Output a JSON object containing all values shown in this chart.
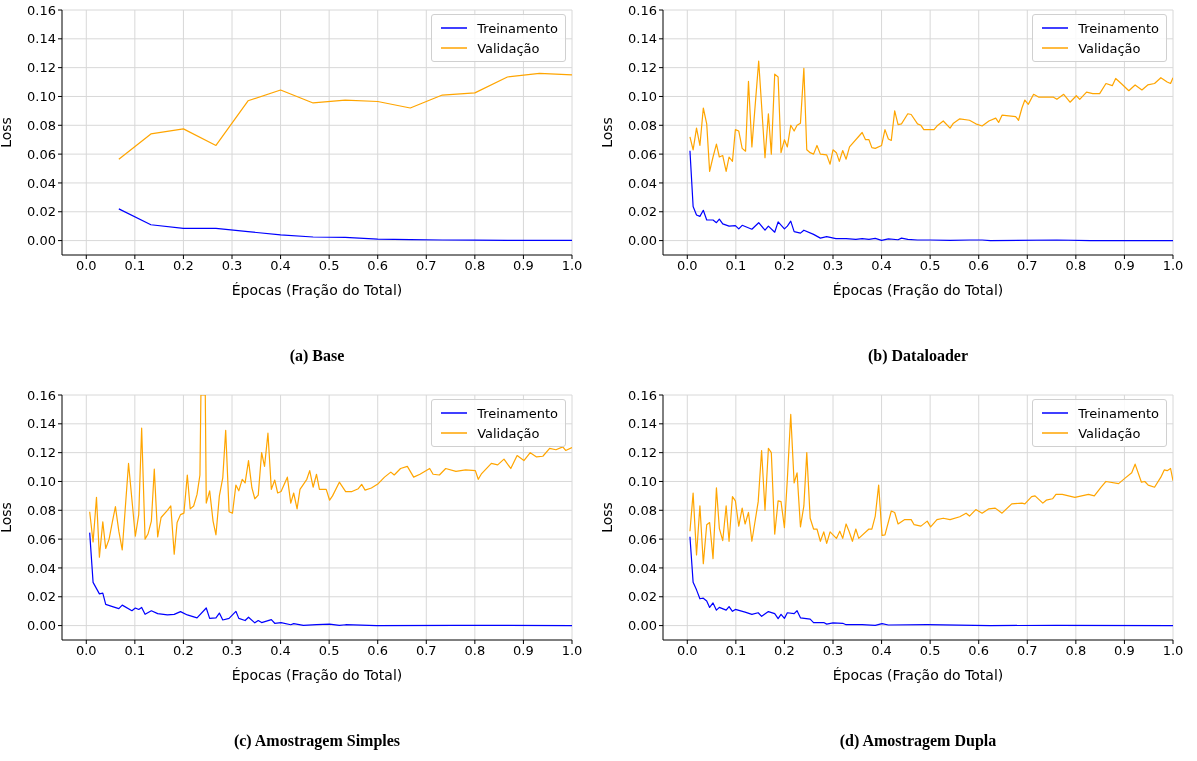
{
  "chart_data": [
    {
      "type": "line",
      "title": "(a) Base",
      "xlabel": "Épocas (Fração do Total)",
      "ylabel": "Loss",
      "xlim": [
        -0.05,
        1.0
      ],
      "xticks": [
        {
          "value": 0,
          "label": "0.0"
        },
        {
          "value": 0.1,
          "label": "0.1"
        },
        {
          "value": 0.2,
          "label": "0.2"
        },
        {
          "value": 0.3,
          "label": "0.3"
        },
        {
          "value": 0.4,
          "label": "0.4"
        },
        {
          "value": 0.5,
          "label": "0.5"
        },
        {
          "value": 0.6,
          "label": "0.6"
        },
        {
          "value": 0.7,
          "label": "0.7"
        },
        {
          "value": 0.8,
          "label": "0.8"
        },
        {
          "value": 0.9,
          "label": "0.9"
        },
        {
          "value": 1,
          "label": "1.0"
        }
      ],
      "ylim": [
        -0.01,
        0.16
      ],
      "yticks": [
        {
          "value": 0,
          "label": "0.00"
        },
        {
          "value": 0.02,
          "label": "0.02"
        },
        {
          "value": 0.04,
          "label": "0.04"
        },
        {
          "value": 0.06,
          "label": "0.06"
        },
        {
          "value": 0.08,
          "label": "0.08"
        },
        {
          "value": 0.1,
          "label": "0.10"
        },
        {
          "value": 0.12,
          "label": "0.12"
        },
        {
          "value": 0.14,
          "label": "0.14"
        },
        {
          "value": 0.16,
          "label": "0.16"
        }
      ],
      "grid": true,
      "legend": "top right",
      "x": [
        0.067,
        0.133,
        0.2,
        0.267,
        0.333,
        0.4,
        0.467,
        0.533,
        0.6,
        0.667,
        0.733,
        0.8,
        0.867,
        0.933,
        1.0
      ],
      "series": [
        {
          "name": "Treinamento",
          "color": "#0000ff",
          "values": [
            0.022,
            0.011,
            0.0085,
            0.0085,
            0.0062,
            0.004,
            0.0025,
            0.0022,
            0.001,
            0.0007,
            0.0004,
            0.0003,
            0.0002,
            0.0002,
            0.0002
          ]
        },
        {
          "name": "Validação",
          "color": "#ffa500",
          "values": [
            0.0565,
            0.074,
            0.0775,
            0.066,
            0.097,
            0.1045,
            0.0955,
            0.0975,
            0.0965,
            0.092,
            0.101,
            0.1025,
            0.1135,
            0.116,
            0.115
          ]
        }
      ]
    },
    {
      "type": "line",
      "title": "(b) Dataloader",
      "xlabel": "Épocas (Fração do Total)",
      "ylabel": "Loss",
      "xlim": [
        -0.05,
        1.0
      ],
      "xticks": [
        {
          "value": 0,
          "label": "0.0"
        },
        {
          "value": 0.1,
          "label": "0.1"
        },
        {
          "value": 0.2,
          "label": "0.2"
        },
        {
          "value": 0.3,
          "label": "0.3"
        },
        {
          "value": 0.4,
          "label": "0.4"
        },
        {
          "value": 0.5,
          "label": "0.5"
        },
        {
          "value": 0.6,
          "label": "0.6"
        },
        {
          "value": 0.7,
          "label": "0.7"
        },
        {
          "value": 0.8,
          "label": "0.8"
        },
        {
          "value": 0.9,
          "label": "0.9"
        },
        {
          "value": 1,
          "label": "1.0"
        }
      ],
      "ylim": [
        -0.01,
        0.16
      ],
      "yticks": [
        {
          "value": 0,
          "label": "0.00"
        },
        {
          "value": 0.02,
          "label": "0.02"
        },
        {
          "value": 0.04,
          "label": "0.04"
        },
        {
          "value": 0.06,
          "label": "0.06"
        },
        {
          "value": 0.08,
          "label": "0.08"
        },
        {
          "value": 0.1,
          "label": "0.10"
        },
        {
          "value": 0.12,
          "label": "0.12"
        },
        {
          "value": 0.14,
          "label": "0.14"
        },
        {
          "value": 0.16,
          "label": "0.16"
        }
      ],
      "grid": true,
      "legend": "top right",
      "series": [
        {
          "name": "Treinamento",
          "color": "#0000ff",
          "x": [
            0.0055,
            0.012,
            0.019,
            0.026,
            0.033,
            0.04,
            0.053,
            0.06,
            0.066,
            0.073,
            0.086,
            0.099,
            0.106,
            0.113,
            0.133,
            0.147,
            0.16,
            0.167,
            0.18,
            0.187,
            0.2,
            0.206,
            0.213,
            0.22,
            0.233,
            0.24,
            0.26,
            0.274,
            0.287,
            0.306,
            0.327,
            0.347,
            0.36,
            0.374,
            0.387,
            0.4,
            0.414,
            0.434,
            0.441,
            0.454,
            0.474,
            0.501,
            0.541,
            0.581,
            0.607,
            0.624,
            0.761,
            0.83,
            1.0
          ],
          "values": [
            0.0623,
            0.0236,
            0.0178,
            0.0168,
            0.021,
            0.0143,
            0.0143,
            0.0124,
            0.0149,
            0.0116,
            0.01,
            0.0104,
            0.0081,
            0.0106,
            0.0079,
            0.0124,
            0.0072,
            0.01,
            0.0058,
            0.013,
            0.0081,
            0.01,
            0.0135,
            0.0062,
            0.0052,
            0.0072,
            0.0043,
            0.0017,
            0.0027,
            0.0014,
            0.0014,
            0.0008,
            0.0014,
            0.0008,
            0.0015,
            0.0002,
            0.0012,
            0.0006,
            0.0017,
            0.0008,
            0.0004,
            0.0004,
            0.0002,
            0.0004,
            0.0004,
            0,
            0.0004,
            0,
            0
          ]
        },
        {
          "name": "Validação",
          "color": "#ffa500",
          "x": [
            0.0055,
            0.012,
            0.019,
            0.026,
            0.033,
            0.04,
            0.046,
            0.053,
            0.06,
            0.066,
            0.073,
            0.08,
            0.086,
            0.093,
            0.099,
            0.106,
            0.113,
            0.12,
            0.126,
            0.133,
            0.147,
            0.16,
            0.167,
            0.173,
            0.18,
            0.187,
            0.193,
            0.2,
            0.206,
            0.213,
            0.22,
            0.226,
            0.233,
            0.24,
            0.246,
            0.253,
            0.26,
            0.267,
            0.274,
            0.287,
            0.294,
            0.3,
            0.307,
            0.313,
            0.32,
            0.327,
            0.334,
            0.36,
            0.367,
            0.374,
            0.38,
            0.387,
            0.4,
            0.407,
            0.414,
            0.42,
            0.427,
            0.434,
            0.441,
            0.454,
            0.461,
            0.474,
            0.481,
            0.487,
            0.508,
            0.514,
            0.527,
            0.541,
            0.548,
            0.561,
            0.581,
            0.594,
            0.607,
            0.621,
            0.635,
            0.641,
            0.648,
            0.662,
            0.676,
            0.682,
            0.689,
            0.695,
            0.702,
            0.713,
            0.724,
            0.754,
            0.761,
            0.775,
            0.788,
            0.801,
            0.808,
            0.822,
            0.835,
            0.849,
            0.862,
            0.875,
            0.882,
            0.895,
            0.909,
            0.922,
            0.936,
            0.948,
            0.962,
            0.975,
            0.988,
            0.995,
            1.0
          ],
          "values": [
            0.072,
            0.063,
            0.078,
            0.066,
            0.092,
            0.081,
            0.048,
            0.058,
            0.067,
            0.058,
            0.059,
            0.048,
            0.058,
            0.055,
            0.077,
            0.076,
            0.064,
            0.062,
            0.1105,
            0.065,
            0.1245,
            0.0575,
            0.088,
            0.06,
            0.1155,
            0.1135,
            0.061,
            0.07,
            0.065,
            0.08,
            0.076,
            0.08,
            0.0815,
            0.1195,
            0.063,
            0.061,
            0.06,
            0.066,
            0.06,
            0.0595,
            0.053,
            0.063,
            0.061,
            0.055,
            0.0625,
            0.0565,
            0.065,
            0.075,
            0.07,
            0.07,
            0.0645,
            0.064,
            0.066,
            0.077,
            0.0705,
            0.0695,
            0.09,
            0.0805,
            0.081,
            0.088,
            0.0875,
            0.081,
            0.08,
            0.077,
            0.077,
            0.0795,
            0.083,
            0.078,
            0.0815,
            0.0845,
            0.0835,
            0.081,
            0.0795,
            0.083,
            0.085,
            0.082,
            0.087,
            0.0865,
            0.086,
            0.0835,
            0.092,
            0.0975,
            0.0945,
            0.1015,
            0.0995,
            0.0995,
            0.098,
            0.1015,
            0.096,
            0.1005,
            0.098,
            0.103,
            0.102,
            0.102,
            0.109,
            0.1075,
            0.1125,
            0.1085,
            0.104,
            0.108,
            0.1045,
            0.108,
            0.109,
            0.113,
            0.11,
            0.109,
            0.113
          ]
        }
      ]
    },
    {
      "type": "line",
      "title": "(c) Amostragem Simples",
      "xlabel": "Épocas (Fração do Total)",
      "ylabel": "Loss",
      "xlim": [
        -0.05,
        1.0
      ],
      "xticks": [
        {
          "value": 0,
          "label": "0.0"
        },
        {
          "value": 0.1,
          "label": "0.1"
        },
        {
          "value": 0.2,
          "label": "0.2"
        },
        {
          "value": 0.3,
          "label": "0.3"
        },
        {
          "value": 0.4,
          "label": "0.4"
        },
        {
          "value": 0.5,
          "label": "0.5"
        },
        {
          "value": 0.6,
          "label": "0.6"
        },
        {
          "value": 0.7,
          "label": "0.7"
        },
        {
          "value": 0.8,
          "label": "0.8"
        },
        {
          "value": 0.9,
          "label": "0.9"
        },
        {
          "value": 1,
          "label": "1.0"
        }
      ],
      "ylim": [
        -0.01,
        0.16
      ],
      "yticks": [
        {
          "value": 0,
          "label": "0.00"
        },
        {
          "value": 0.02,
          "label": "0.02"
        },
        {
          "value": 0.04,
          "label": "0.04"
        },
        {
          "value": 0.06,
          "label": "0.06"
        },
        {
          "value": 0.08,
          "label": "0.08"
        },
        {
          "value": 0.1,
          "label": "0.10"
        },
        {
          "value": 0.12,
          "label": "0.12"
        },
        {
          "value": 0.14,
          "label": "0.14"
        },
        {
          "value": 0.16,
          "label": "0.16"
        }
      ],
      "grid": true,
      "legend": "top right",
      "series": [
        {
          "name": "Treinamento",
          "color": "#0000ff",
          "x": [
            0.007,
            0.014,
            0.027,
            0.034,
            0.04,
            0.054,
            0.067,
            0.074,
            0.094,
            0.101,
            0.108,
            0.114,
            0.121,
            0.134,
            0.147,
            0.167,
            0.181,
            0.194,
            0.208,
            0.228,
            0.247,
            0.254,
            0.267,
            0.274,
            0.281,
            0.294,
            0.308,
            0.314,
            0.327,
            0.334,
            0.347,
            0.354,
            0.361,
            0.381,
            0.388,
            0.401,
            0.421,
            0.427,
            0.447,
            0.474,
            0.501,
            0.521,
            0.534,
            0.598,
            0.761,
            1.0
          ],
          "values": [
            0.0645,
            0.03,
            0.022,
            0.0225,
            0.0147,
            0.0132,
            0.0118,
            0.0142,
            0.0103,
            0.0122,
            0.0112,
            0.0126,
            0.0078,
            0.0103,
            0.0083,
            0.0074,
            0.0078,
            0.0097,
            0.0074,
            0.0054,
            0.0122,
            0.005,
            0.0054,
            0.0087,
            0.0039,
            0.005,
            0.0099,
            0.005,
            0.0035,
            0.0058,
            0.0019,
            0.0035,
            0.0021,
            0.0041,
            0.0016,
            0.0021,
            0.0006,
            0.0014,
            0.0002,
            0.0006,
            0.001,
            0.0002,
            0.0006,
            0,
            0.0002,
            0
          ]
        },
        {
          "name": "Validação",
          "color": "#ffa500",
          "x": [
            0.007,
            0.014,
            0.021,
            0.027,
            0.034,
            0.04,
            0.047,
            0.054,
            0.06,
            0.067,
            0.074,
            0.087,
            0.101,
            0.108,
            0.114,
            0.121,
            0.127,
            0.134,
            0.14,
            0.147,
            0.154,
            0.167,
            0.174,
            0.181,
            0.187,
            0.194,
            0.201,
            0.208,
            0.214,
            0.221,
            0.228,
            0.234,
            0.236,
            0.245,
            0.247,
            0.254,
            0.261,
            0.267,
            0.274,
            0.281,
            0.287,
            0.294,
            0.301,
            0.308,
            0.314,
            0.321,
            0.327,
            0.334,
            0.341,
            0.347,
            0.354,
            0.361,
            0.367,
            0.374,
            0.381,
            0.388,
            0.394,
            0.401,
            0.414,
            0.421,
            0.427,
            0.434,
            0.44,
            0.454,
            0.46,
            0.467,
            0.474,
            0.48,
            0.494,
            0.501,
            0.507,
            0.521,
            0.534,
            0.547,
            0.56,
            0.567,
            0.574,
            0.587,
            0.601,
            0.614,
            0.627,
            0.634,
            0.647,
            0.661,
            0.674,
            0.687,
            0.707,
            0.714,
            0.727,
            0.74,
            0.761,
            0.781,
            0.801,
            0.807,
            0.814,
            0.834,
            0.847,
            0.86,
            0.874,
            0.887,
            0.901,
            0.914,
            0.927,
            0.94,
            0.954,
            0.967,
            0.981,
            0.987,
            1.0
          ],
          "values": [
            0.079,
            0.058,
            0.089,
            0.0475,
            0.072,
            0.0535,
            0.06,
            0.0725,
            0.0825,
            0.0655,
            0.0525,
            0.1125,
            0.062,
            0.077,
            0.137,
            0.06,
            0.0635,
            0.0725,
            0.1085,
            0.0615,
            0.075,
            0.08,
            0.083,
            0.0495,
            0.0715,
            0.077,
            0.078,
            0.1045,
            0.081,
            0.083,
            0.091,
            0.1045,
            0.16,
            0.16,
            0.085,
            0.0935,
            0.0725,
            0.063,
            0.09,
            0.1025,
            0.1355,
            0.079,
            0.078,
            0.0975,
            0.0935,
            0.1015,
            0.099,
            0.1145,
            0.0955,
            0.088,
            0.0905,
            0.12,
            0.1105,
            0.1335,
            0.0945,
            0.101,
            0.092,
            0.093,
            0.103,
            0.085,
            0.092,
            0.081,
            0.0945,
            0.1015,
            0.1075,
            0.096,
            0.105,
            0.0945,
            0.0945,
            0.087,
            0.09,
            0.0995,
            0.093,
            0.093,
            0.095,
            0.098,
            0.094,
            0.0955,
            0.0985,
            0.103,
            0.1065,
            0.1045,
            0.109,
            0.1105,
            0.103,
            0.105,
            0.109,
            0.105,
            0.1045,
            0.109,
            0.107,
            0.108,
            0.1075,
            0.1015,
            0.1055,
            0.1125,
            0.1115,
            0.1155,
            0.109,
            0.118,
            0.1145,
            0.12,
            0.117,
            0.1175,
            0.123,
            0.122,
            0.124,
            0.1215,
            0.1235
          ]
        }
      ]
    },
    {
      "type": "line",
      "title": "(d) Amostragem Dupla",
      "xlabel": "Épocas (Fração do Total)",
      "ylabel": "Loss",
      "xlim": [
        -0.05,
        1.0
      ],
      "xticks": [
        {
          "value": 0,
          "label": "0.0"
        },
        {
          "value": 0.1,
          "label": "0.1"
        },
        {
          "value": 0.2,
          "label": "0.2"
        },
        {
          "value": 0.3,
          "label": "0.3"
        },
        {
          "value": 0.4,
          "label": "0.4"
        },
        {
          "value": 0.5,
          "label": "0.5"
        },
        {
          "value": 0.6,
          "label": "0.6"
        },
        {
          "value": 0.7,
          "label": "0.7"
        },
        {
          "value": 0.8,
          "label": "0.8"
        },
        {
          "value": 0.9,
          "label": "0.9"
        },
        {
          "value": 1,
          "label": "1.0"
        }
      ],
      "ylim": [
        -0.01,
        0.16
      ],
      "yticks": [
        {
          "value": 0,
          "label": "0.00"
        },
        {
          "value": 0.02,
          "label": "0.02"
        },
        {
          "value": 0.04,
          "label": "0.04"
        },
        {
          "value": 0.06,
          "label": "0.06"
        },
        {
          "value": 0.08,
          "label": "0.08"
        },
        {
          "value": 0.1,
          "label": "0.10"
        },
        {
          "value": 0.12,
          "label": "0.12"
        },
        {
          "value": 0.14,
          "label": "0.14"
        },
        {
          "value": 0.16,
          "label": "0.16"
        }
      ],
      "grid": true,
      "legend": "top right",
      "series": [
        {
          "name": "Treinamento",
          "color": "#0000ff",
          "x": [
            0.0055,
            0.012,
            0.019,
            0.026,
            0.033,
            0.04,
            0.046,
            0.053,
            0.06,
            0.066,
            0.08,
            0.086,
            0.093,
            0.099,
            0.119,
            0.133,
            0.146,
            0.153,
            0.167,
            0.18,
            0.187,
            0.193,
            0.2,
            0.206,
            0.22,
            0.226,
            0.233,
            0.253,
            0.26,
            0.281,
            0.287,
            0.3,
            0.32,
            0.327,
            0.36,
            0.387,
            0.401,
            0.414,
            0.494,
            0.624,
            0.759,
            1.0
          ],
          "values": [
            0.0617,
            0.03,
            0.0248,
            0.0186,
            0.019,
            0.0171,
            0.0126,
            0.0157,
            0.0107,
            0.0126,
            0.0107,
            0.0132,
            0.0099,
            0.0112,
            0.0093,
            0.0078,
            0.0089,
            0.0064,
            0.0097,
            0.0083,
            0.0048,
            0.0078,
            0.005,
            0.0089,
            0.0083,
            0.0103,
            0.0054,
            0.0045,
            0.0021,
            0.0021,
            0.001,
            0.0019,
            0.0016,
            0.0006,
            0.0006,
            0.0002,
            0.0014,
            0.0004,
            0.0006,
            0,
            0.0002,
            0
          ]
        },
        {
          "name": "Validação",
          "color": "#ffa500",
          "x": [
            0.0055,
            0.012,
            0.019,
            0.026,
            0.033,
            0.04,
            0.046,
            0.053,
            0.06,
            0.066,
            0.073,
            0.08,
            0.086,
            0.093,
            0.099,
            0.106,
            0.113,
            0.119,
            0.126,
            0.133,
            0.146,
            0.153,
            0.16,
            0.167,
            0.173,
            0.18,
            0.187,
            0.193,
            0.2,
            0.206,
            0.213,
            0.22,
            0.226,
            0.233,
            0.24,
            0.246,
            0.253,
            0.26,
            0.267,
            0.274,
            0.281,
            0.287,
            0.294,
            0.307,
            0.314,
            0.32,
            0.327,
            0.333,
            0.34,
            0.347,
            0.353,
            0.374,
            0.38,
            0.387,
            0.394,
            0.401,
            0.407,
            0.42,
            0.427,
            0.434,
            0.447,
            0.461,
            0.467,
            0.481,
            0.494,
            0.501,
            0.514,
            0.527,
            0.541,
            0.561,
            0.574,
            0.581,
            0.594,
            0.607,
            0.621,
            0.634,
            0.648,
            0.668,
            0.689,
            0.695,
            0.709,
            0.716,
            0.732,
            0.739,
            0.752,
            0.759,
            0.772,
            0.785,
            0.798,
            0.812,
            0.826,
            0.838,
            0.852,
            0.862,
            0.888,
            0.902,
            0.915,
            0.922,
            0.935,
            0.942,
            0.949,
            0.962,
            0.975,
            0.982,
            0.988,
            0.995,
            1.0
          ],
          "values": [
            0.0655,
            0.092,
            0.049,
            0.083,
            0.043,
            0.07,
            0.0715,
            0.0465,
            0.0955,
            0.0675,
            0.059,
            0.083,
            0.0585,
            0.0895,
            0.0865,
            0.069,
            0.0815,
            0.0705,
            0.0785,
            0.0585,
            0.086,
            0.1215,
            0.08,
            0.123,
            0.12,
            0.0635,
            0.0865,
            0.086,
            0.068,
            0.1015,
            0.1465,
            0.099,
            0.106,
            0.0685,
            0.083,
            0.12,
            0.0745,
            0.067,
            0.067,
            0.0585,
            0.065,
            0.057,
            0.065,
            0.0605,
            0.0655,
            0.0605,
            0.0705,
            0.0655,
            0.0585,
            0.067,
            0.0605,
            0.067,
            0.067,
            0.076,
            0.0975,
            0.0625,
            0.063,
            0.0795,
            0.0785,
            0.0705,
            0.0735,
            0.0735,
            0.07,
            0.069,
            0.0725,
            0.0685,
            0.0735,
            0.0745,
            0.0735,
            0.0755,
            0.078,
            0.076,
            0.0805,
            0.078,
            0.081,
            0.0815,
            0.078,
            0.0845,
            0.085,
            0.0845,
            0.0895,
            0.09,
            0.085,
            0.087,
            0.088,
            0.091,
            0.091,
            0.09,
            0.089,
            0.09,
            0.091,
            0.09,
            0.096,
            0.1,
            0.0985,
            0.1025,
            0.106,
            0.112,
            0.0995,
            0.1,
            0.0975,
            0.096,
            0.103,
            0.108,
            0.1075,
            0.109,
            0.1005
          ]
        }
      ]
    }
  ]
}
